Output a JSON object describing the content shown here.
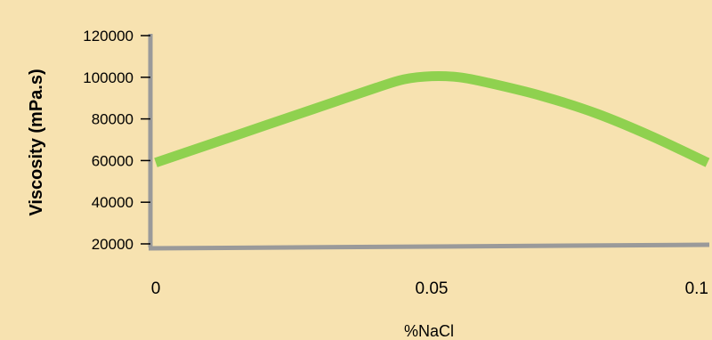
{
  "chart_data": {
    "type": "line",
    "xlabel": "%NaCl",
    "ylabel": "Viscosity (mPa.s)",
    "x_ticks": [
      "0",
      "0.05",
      "0.1"
    ],
    "y_ticks": [
      "20000",
      "40000",
      "60000",
      "80000",
      "100000",
      "120000"
    ],
    "xlim": [
      0,
      0.1
    ],
    "ylim": [
      14000,
      120000
    ],
    "grid": false,
    "series": [
      {
        "x": [
          0,
          0.01,
          0.02,
          0.03,
          0.04,
          0.045,
          0.05,
          0.055,
          0.06,
          0.07,
          0.08,
          0.09,
          0.1
        ],
        "y": [
          59000,
          68000,
          77000,
          86000,
          95000,
          99000,
          100500,
          100000,
          97500,
          91000,
          82500,
          71500,
          59000
        ]
      }
    ],
    "colors": {
      "background": "#f7e2b0",
      "axis": "#9a9a9a",
      "line": "#8fd14f",
      "text": "#000000"
    }
  }
}
